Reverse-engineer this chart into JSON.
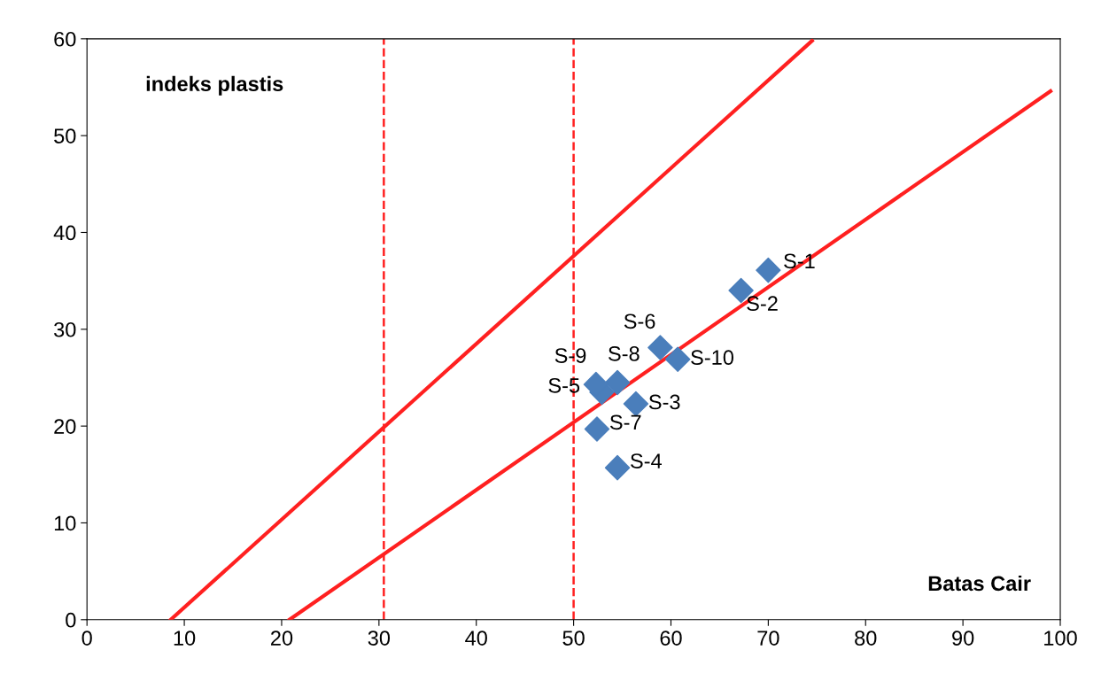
{
  "chart_data": {
    "type": "scatter",
    "xlabel": "Batas Cair",
    "ylabel": "indeks plastis",
    "xlim": [
      0,
      100
    ],
    "ylim": [
      0,
      60
    ],
    "xticks": [
      0,
      10,
      20,
      30,
      40,
      50,
      60,
      70,
      80,
      90,
      100
    ],
    "yticks": [
      0,
      10,
      20,
      30,
      40,
      50,
      60
    ],
    "grid": false,
    "marker": "diamond",
    "series": [
      {
        "color": "#4a7ebb",
        "x": [
          70.0,
          67.2,
          56.4,
          54.5,
          52.9,
          58.9,
          52.4,
          54.5,
          52.3,
          60.7
        ],
        "values": [
          36.1,
          34.0,
          22.3,
          15.7,
          23.5,
          28.1,
          19.7,
          24.5,
          24.3,
          26.9
        ]
      },
      {
        "type": "line",
        "color": "#ff2020",
        "marker": "none",
        "x": [
          8.6,
          74.5
        ],
        "values": [
          0,
          59.8
        ]
      },
      {
        "type": "line",
        "color": "#ff2020",
        "marker": "none",
        "x": [
          20.8,
          99
        ],
        "values": [
          0,
          54.6
        ]
      }
    ],
    "ref_lines": [
      {
        "axis": "x",
        "value": 30.5,
        "color": "#ff2020",
        "line_style": "dashed"
      },
      {
        "axis": "x",
        "value": 50,
        "color": "#ff2020",
        "line_style": "dashed"
      }
    ],
    "annotations": [
      {
        "text": "S-1",
        "x": 70.0,
        "y": 36.1
      },
      {
        "text": "S-2",
        "x": 67.2,
        "y": 34.0
      },
      {
        "text": "S-3",
        "x": 56.4,
        "y": 22.3
      },
      {
        "text": "S-4",
        "x": 54.5,
        "y": 15.7
      },
      {
        "text": "S-5",
        "x": 52.9,
        "y": 23.5
      },
      {
        "text": "S-6",
        "x": 58.9,
        "y": 28.1
      },
      {
        "text": "S-7",
        "x": 52.4,
        "y": 19.7
      },
      {
        "text": "S-8",
        "x": 54.5,
        "y": 24.5
      },
      {
        "text": "S-9",
        "x": 52.3,
        "y": 24.3
      },
      {
        "text": "S-10",
        "x": 60.7,
        "y": 26.9
      }
    ]
  }
}
